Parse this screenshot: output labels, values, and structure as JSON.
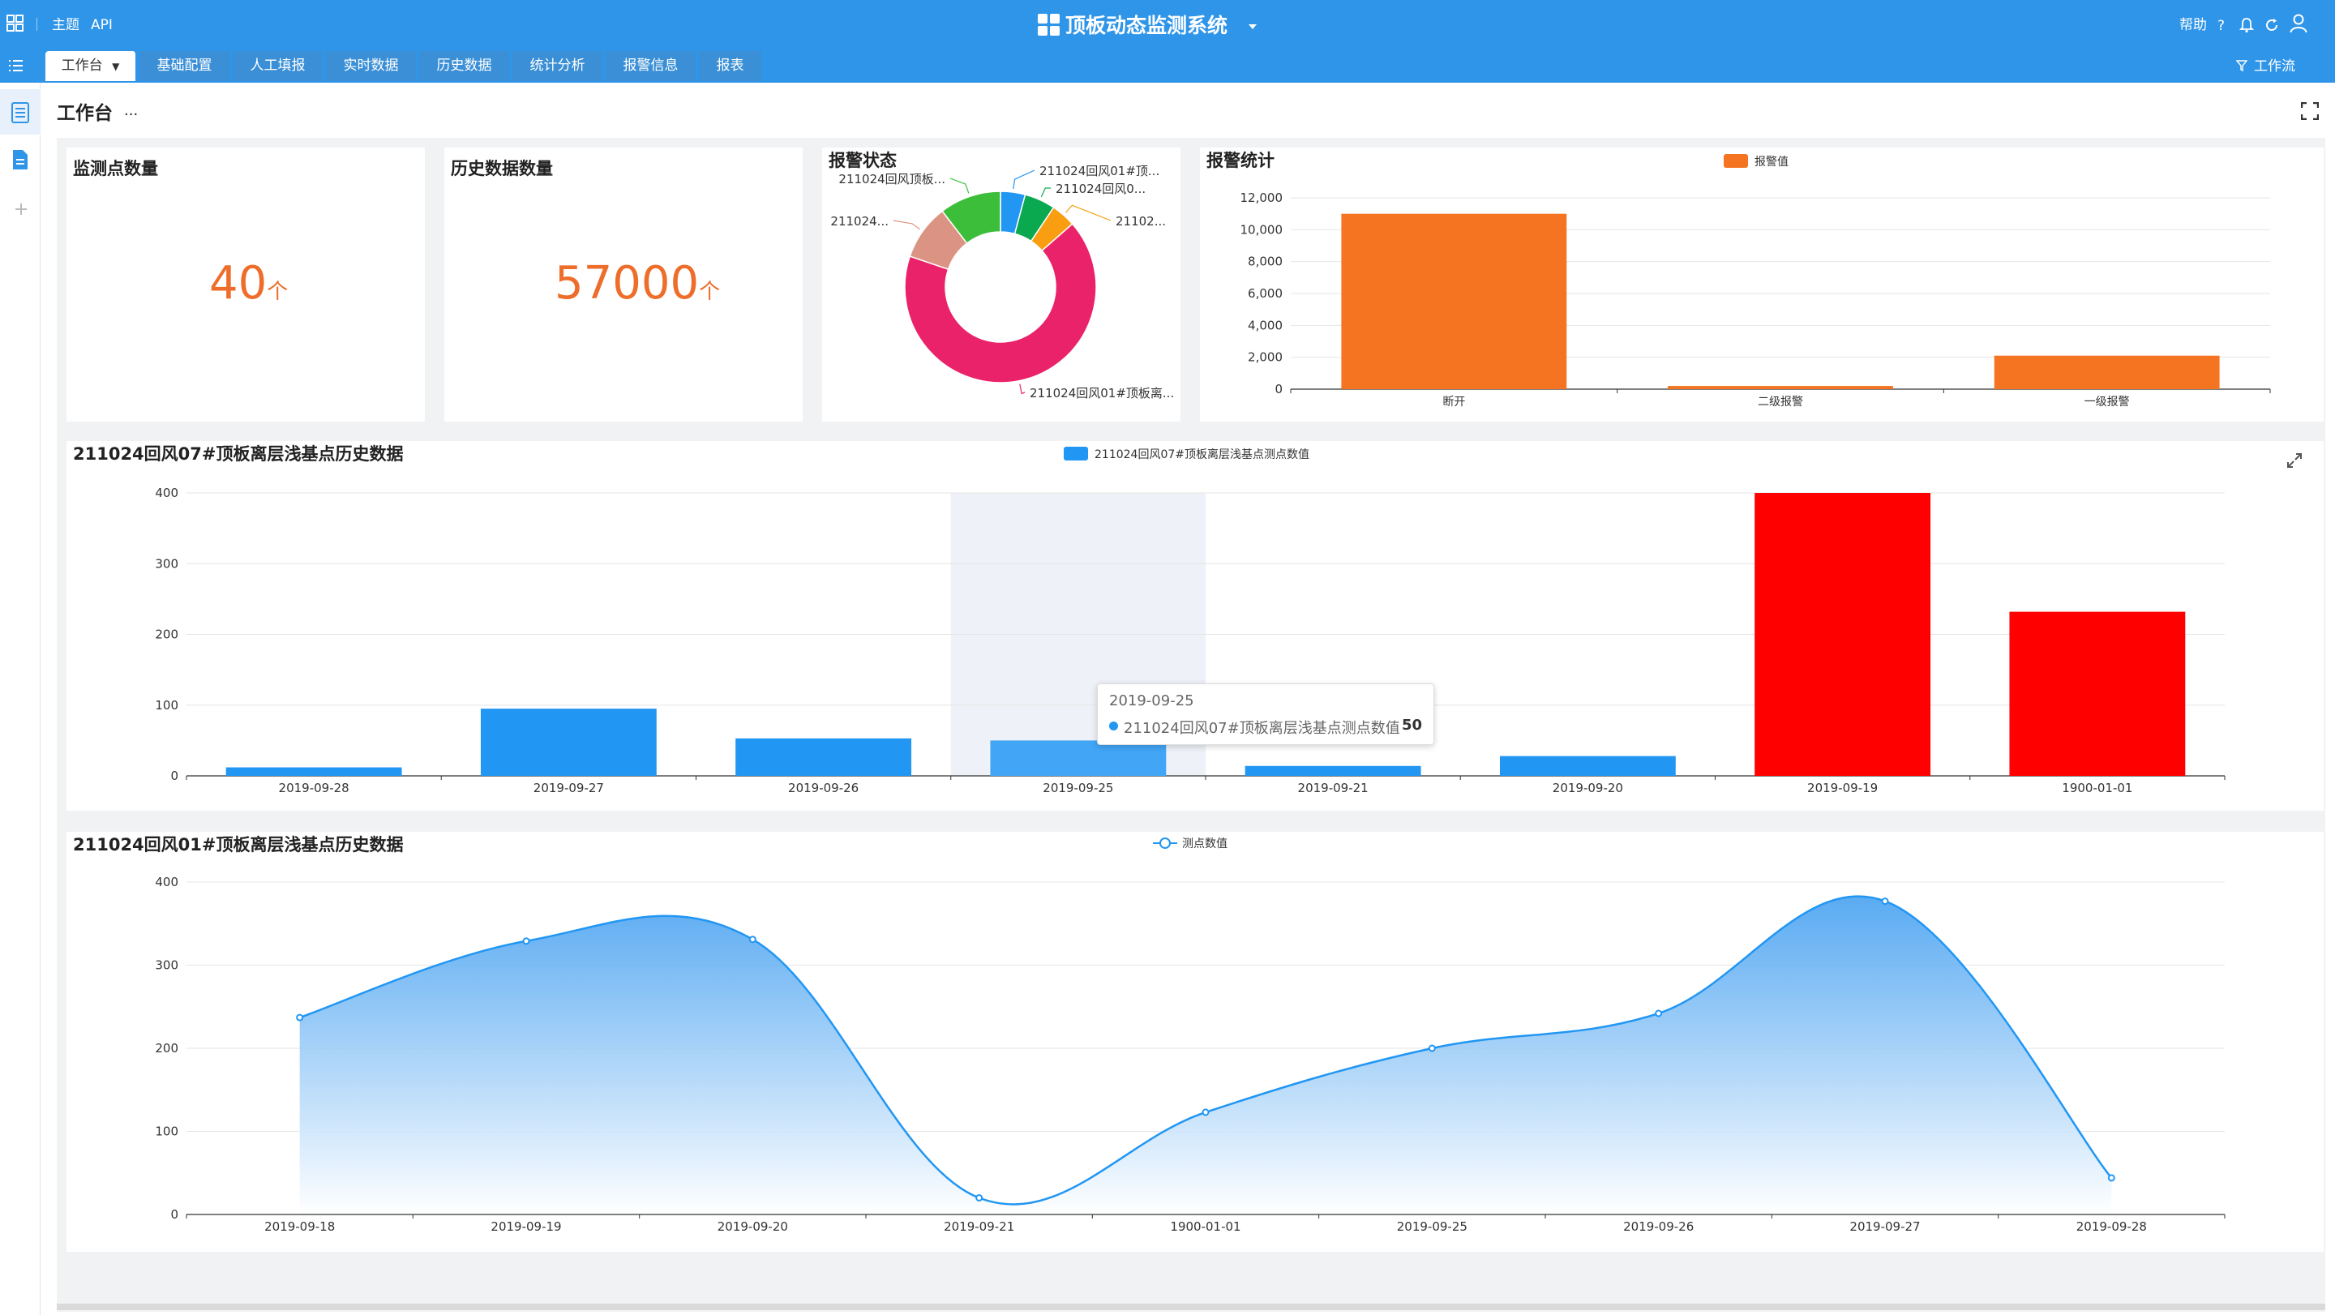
{
  "header": {
    "theme_label": "主题",
    "api_label": "API",
    "app_title": "顶板动态监测系统",
    "help_label": "帮助",
    "workflow_label": "工作流"
  },
  "tabs": [
    {
      "label": "工作台"
    },
    {
      "label": "基础配置"
    },
    {
      "label": "人工填报"
    },
    {
      "label": "实时数据"
    },
    {
      "label": "历史数据"
    },
    {
      "label": "统计分析"
    },
    {
      "label": "报警信息"
    },
    {
      "label": "报表"
    }
  ],
  "page": {
    "title": "工作台",
    "more": "···"
  },
  "stats": {
    "monitor_points": {
      "title": "监测点数量",
      "value": "40",
      "unit": "个"
    },
    "history_records": {
      "title": "历史数据数量",
      "value": "57000",
      "unit": "个"
    }
  },
  "alarm_status": {
    "title": "报警状态",
    "slice_labels": [
      "211024回风01#顶...",
      "211024回风0...",
      "21102...",
      "211024回风01#顶板离...",
      "211024...",
      "211024回风顶板..."
    ]
  },
  "alarm_stats": {
    "title": "报警统计"
  },
  "chart1": {
    "title": "211024回风07#顶板离层浅基点历史数据"
  },
  "chart2": {
    "title": "211024回风01#顶板离层浅基点历史数据"
  },
  "tooltip": {
    "date": "2019-09-25",
    "series": "211024回风07#顶板离层浅基点测点数值",
    "value": "50"
  },
  "colors": {
    "primary": "#2f95e8",
    "orange": "#f47421",
    "red": "#ff0000",
    "blue": "#2196f3",
    "donut": [
      "#2196f3",
      "#0aa84f",
      "#f99d11",
      "#ea2269",
      "#db9483",
      "#3dbe3a"
    ]
  },
  "chart_data": [
    {
      "type": "pie",
      "title": "报警状态",
      "labels": [
        "211024回风01#顶...",
        "211024回风0...",
        "21102...",
        "211024回风01#顶板离...",
        "211024...",
        "211024回风顶板..."
      ],
      "values": [
        4,
        5,
        4,
        64,
        9,
        10
      ]
    },
    {
      "type": "bar",
      "title": "报警统计",
      "categories": [
        "断开",
        "二级报警",
        "一级报警"
      ],
      "series": [
        {
          "name": "报警值",
          "values": [
            11000,
            200,
            2100
          ]
        }
      ],
      "ylim": [
        0,
        12000
      ],
      "yticks": [
        "12,000",
        "10,000",
        "8,000",
        "6,000",
        "4,000",
        "2,000",
        "0"
      ],
      "legend": "top-center"
    },
    {
      "type": "bar",
      "title": "211024回风07#顶板离层浅基点历史数据",
      "categories": [
        "2019-09-28",
        "2019-09-27",
        "2019-09-26",
        "2019-09-25",
        "2019-09-21",
        "2019-09-20",
        "2019-09-19",
        "1900-01-01"
      ],
      "series": [
        {
          "name": "211024回风07#顶板离层浅基点测点数值",
          "values": [
            12,
            95,
            53,
            50,
            14,
            28,
            400,
            232
          ]
        }
      ],
      "highlight_over": 200,
      "ylim": [
        0,
        400
      ],
      "yticks": [
        "400",
        "300",
        "200",
        "100",
        "0"
      ],
      "legend": "top-center"
    },
    {
      "type": "area",
      "title": "211024回风01#顶板离层浅基点历史数据",
      "categories": [
        "2019-09-18",
        "2019-09-19",
        "2019-09-20",
        "2019-09-21",
        "1900-01-01",
        "2019-09-25",
        "2019-09-26",
        "2019-09-27",
        "2019-09-28"
      ],
      "series": [
        {
          "name": "测点数值",
          "values": [
            237,
            329,
            331,
            20,
            123,
            200,
            242,
            377,
            44
          ]
        }
      ],
      "ylim": [
        0,
        400
      ],
      "yticks": [
        "400",
        "300",
        "200",
        "100",
        "0"
      ],
      "legend": "top-center"
    }
  ]
}
